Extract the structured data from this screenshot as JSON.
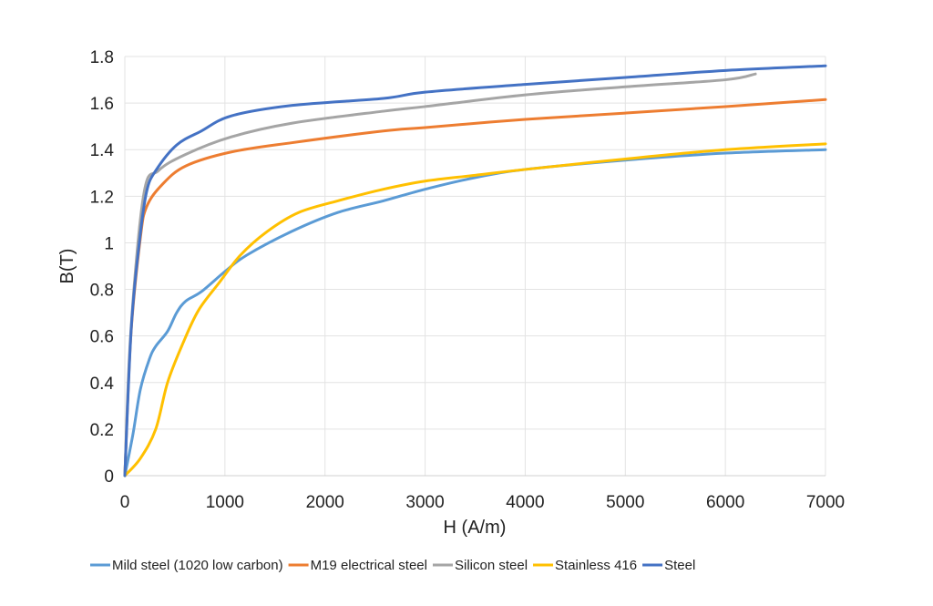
{
  "chart_data": {
    "type": "line",
    "title": "",
    "xlabel": "H (A/m)",
    "ylabel": "B(T)",
    "xlim": [
      0,
      7000
    ],
    "ylim": [
      0,
      1.8
    ],
    "xticks": [
      "0",
      "1000",
      "2000",
      "3000",
      "4000",
      "5000",
      "6000",
      "7000"
    ],
    "yticks": [
      "0",
      "0.2",
      "0.4",
      "0.6",
      "0.8",
      "1",
      "1.2",
      "1.4",
      "1.6",
      "1.8"
    ],
    "grid": true,
    "legend_position": "bottom",
    "series": [
      {
        "name": "Mild steel (1020 low carbon)",
        "color": "#5b9bd5",
        "x": [
          0,
          82,
          155,
          245,
          309,
          427,
          518,
          609,
          764,
          1009,
          1218,
          1673,
          2127,
          2582,
          3000,
          3500,
          4000,
          5000,
          6000,
          7000
        ],
        "y": [
          0,
          0.18,
          0.37,
          0.5,
          0.556,
          0.62,
          0.7,
          0.75,
          0.79,
          0.88,
          0.947,
          1.05,
          1.13,
          1.18,
          1.23,
          1.28,
          1.315,
          1.355,
          1.385,
          1.4
        ]
      },
      {
        "name": "M19 electrical steel",
        "color": "#ed7d31",
        "x": [
          0,
          60,
          155,
          218,
          373,
          609,
          1064,
          1673,
          2582,
          3000,
          4000,
          5000,
          6000,
          7000
        ],
        "y": [
          0,
          0.6,
          1.02,
          1.155,
          1.25,
          1.33,
          1.39,
          1.43,
          1.48,
          1.495,
          1.53,
          1.557,
          1.585,
          1.615
        ]
      },
      {
        "name": "Silicon steel",
        "color": "#a5a5a5",
        "x": [
          0,
          60,
          190,
          336,
          609,
          1064,
          1673,
          2582,
          3000,
          4000,
          5000,
          6000,
          6300
        ],
        "y": [
          0,
          0.62,
          1.21,
          1.31,
          1.38,
          1.455,
          1.514,
          1.565,
          1.585,
          1.635,
          1.67,
          1.7,
          1.725
        ]
      },
      {
        "name": "Stainless 416",
        "color": "#ffc000",
        "x": [
          0,
          155,
          309,
          427,
          582,
          736,
          945,
          1155,
          1427,
          1736,
          2127,
          2582,
          3000,
          3500,
          4000,
          5000,
          6000,
          7000
        ],
        "y": [
          0,
          0.074,
          0.2,
          0.4,
          0.57,
          0.71,
          0.83,
          0.947,
          1.05,
          1.13,
          1.18,
          1.23,
          1.265,
          1.29,
          1.315,
          1.36,
          1.4,
          1.425
        ]
      },
      {
        "name": "Steel",
        "color": "#4472c4",
        "x": [
          0,
          64,
          145,
          218,
          309,
          518,
          764,
          1064,
          1673,
          2582,
          3000,
          4000,
          5000,
          6000,
          7000
        ],
        "y": [
          0,
          0.63,
          1.0,
          1.22,
          1.31,
          1.42,
          1.48,
          1.545,
          1.59,
          1.62,
          1.647,
          1.68,
          1.71,
          1.74,
          1.76
        ]
      }
    ]
  }
}
